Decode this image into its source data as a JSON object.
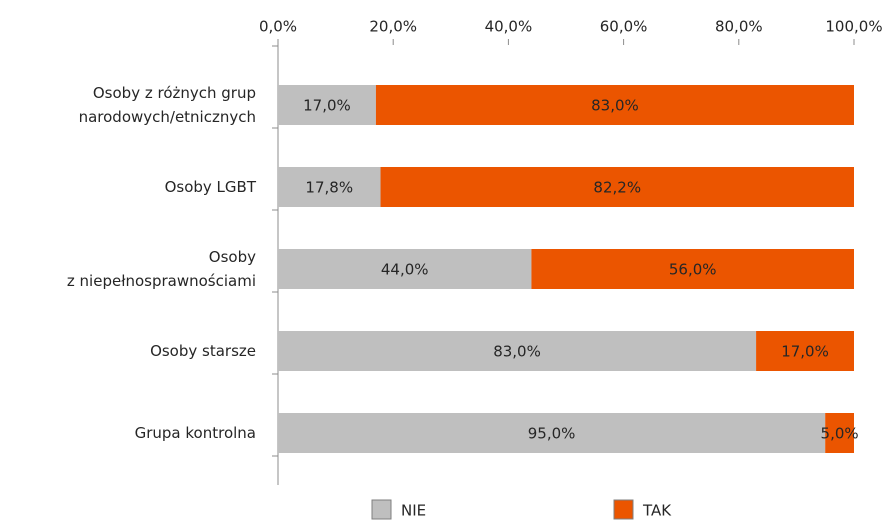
{
  "chart_data": {
    "type": "stacked-bar-horizontal",
    "categories": [
      [
        "Osoby z różnych grup",
        "narodowych/etnicznych"
      ],
      [
        "Osoby LGBT"
      ],
      [
        "Osoby",
        "z niepełnosprawnościami"
      ],
      [
        "Osoby starsze"
      ],
      [
        "Grupa kontrolna"
      ]
    ],
    "series": [
      {
        "name": "NIE",
        "color": "#bfbfbf",
        "values": [
          17,
          17.8,
          44,
          83,
          95
        ],
        "value_labels": [
          "17,0%",
          "17,8%",
          "44,0%",
          "83,0%",
          "95,0%"
        ]
      },
      {
        "name": "TAK",
        "color": "#eb5500",
        "values": [
          83,
          82.2,
          56,
          17,
          5
        ],
        "value_labels": [
          "83,0%",
          "82,2%",
          "56,0%",
          "17,0%",
          "5,0%"
        ]
      }
    ],
    "xlim": [
      0,
      100
    ],
    "xticks": [
      {
        "value": 0,
        "label": "0,0%"
      },
      {
        "value": 20,
        "label": "20,0%"
      },
      {
        "value": 40,
        "label": "40,0%"
      },
      {
        "value": 60,
        "label": "60,0%"
      },
      {
        "value": 80,
        "label": "80,0%"
      },
      {
        "value": 100,
        "label": "100,0%"
      }
    ],
    "legend": "bottom"
  }
}
